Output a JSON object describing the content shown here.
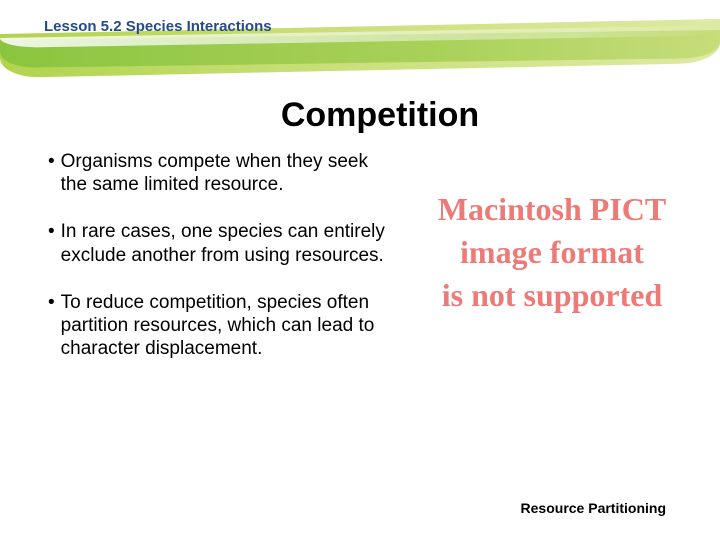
{
  "header": {
    "lesson_label": "Lesson 5.2 Species Interactions"
  },
  "title": "Competition",
  "bullets": [
    "Organisms compete when they seek the same limited resource.",
    "In rare cases, one species can entirely exclude another from using resources.",
    "To reduce competition, species often partition resources, which can lead to character displacement."
  ],
  "pict_placeholder": {
    "line1": "Macintosh PICT",
    "line2": "image format",
    "line3": "is not supported"
  },
  "caption": "Resource Partitioning",
  "colors": {
    "title_color": "#000000",
    "lesson_color": "#274a8c",
    "pict_color": "#ec7a77",
    "swoosh_green_a": "#8bc53f",
    "swoosh_green_b": "#c6dd6f"
  }
}
